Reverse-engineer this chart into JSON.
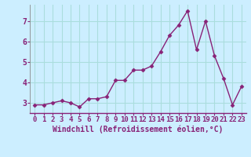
{
  "x": [
    0,
    1,
    2,
    3,
    4,
    5,
    6,
    7,
    8,
    9,
    10,
    11,
    12,
    13,
    14,
    15,
    16,
    17,
    18,
    19,
    20,
    21,
    22,
    23
  ],
  "y": [
    2.9,
    2.9,
    3.0,
    3.1,
    3.0,
    2.8,
    3.2,
    3.2,
    3.3,
    4.1,
    4.1,
    4.6,
    4.6,
    4.8,
    5.5,
    6.3,
    6.8,
    7.5,
    5.6,
    7.0,
    5.3,
    4.2,
    2.9,
    3.8
  ],
  "line_color": "#882277",
  "marker": "D",
  "markersize": 2.5,
  "linewidth": 1.0,
  "background_color": "#cceeff",
  "grid_color": "#aadddd",
  "xlabel": "Windchill (Refroidissement éolien,°C)",
  "xlabel_color": "#882277",
  "xlabel_fontsize": 7,
  "tick_color": "#882277",
  "tick_fontsize": 6.5,
  "ylim": [
    2.5,
    7.8
  ],
  "yticks": [
    3,
    4,
    5,
    6,
    7
  ],
  "xticks": [
    0,
    1,
    2,
    3,
    4,
    5,
    6,
    7,
    8,
    9,
    10,
    11,
    12,
    13,
    14,
    15,
    16,
    17,
    18,
    19,
    20,
    21,
    22,
    23
  ]
}
